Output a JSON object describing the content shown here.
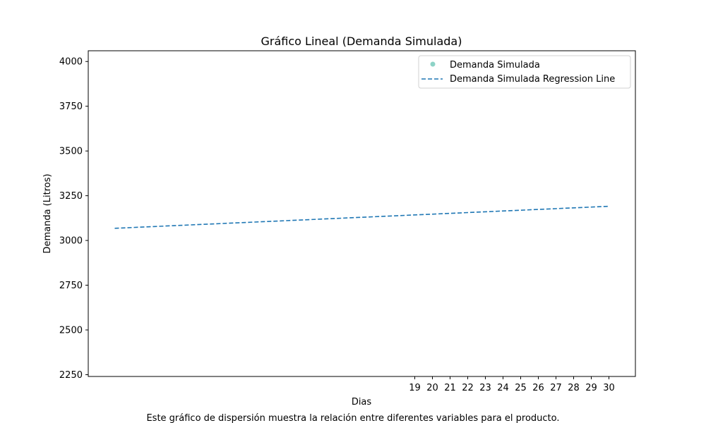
{
  "chart_data": {
    "type": "scatter",
    "title": "Gráfico Lineal (Demanda Simulada)",
    "xlabel": "Dias",
    "ylabel": "Demanda (Litros)",
    "caption": "Este gráfico de dispersión muestra la relación entre diferentes variables para el producto.",
    "xlim": [
      0.5,
      31.5
    ],
    "ylim": [
      2240,
      4060
    ],
    "x_ticks": [
      19,
      20,
      21,
      22,
      23,
      24,
      25,
      26,
      27,
      28,
      29,
      30
    ],
    "y_ticks": [
      2250,
      2500,
      2750,
      3000,
      3250,
      3500,
      3750,
      4000
    ],
    "grid": false,
    "legend_position": "top-right",
    "series": [
      {
        "name": "Demanda Simulada",
        "kind": "scatter",
        "color": "#8dd3c7",
        "points": []
      },
      {
        "name": "Demanda Simulada Regression Line",
        "kind": "regression-line",
        "color": "#1f77b4",
        "line_style": "dashed",
        "points": [
          {
            "x": 2,
            "y": 3068
          },
          {
            "x": 30,
            "y": 3191
          }
        ]
      }
    ]
  }
}
